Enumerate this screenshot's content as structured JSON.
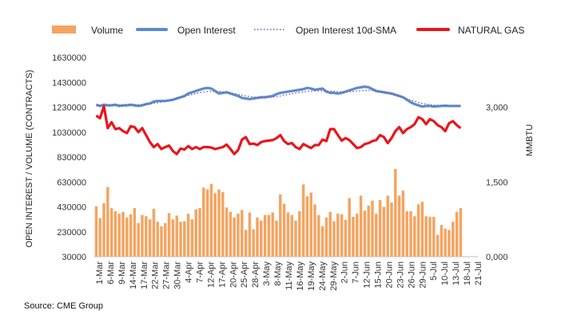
{
  "chart_data": {
    "type": "bar+line",
    "source": "Source: CME Group",
    "legend": {
      "placement": "top",
      "entries": [
        {
          "label": "Volume",
          "color": "#F4A460",
          "kind": "bar"
        },
        {
          "label": "Open Interest",
          "color": "#5B8CC8",
          "kind": "line"
        },
        {
          "label": "Open Interest 10d-SMA",
          "color": "#7E57C2",
          "kind": "dotted"
        },
        {
          "label": "NATURAL GAS",
          "color": "#E8161C",
          "kind": "line"
        }
      ]
    },
    "y_left": {
      "label": "OPEN INTEREST / VOLUME (CONTRACTS)",
      "range": [
        30000,
        1630000
      ],
      "ticks": [
        "30000",
        "230000",
        "430000",
        "630000",
        "830000",
        "1030000",
        "1230000",
        "1430000",
        "1630000"
      ]
    },
    "y_right": {
      "label": "MMBTU",
      "range": [
        0,
        4000
      ],
      "ticks": [
        "0,000",
        "1,500",
        "3,000"
      ]
    },
    "x_labels": [
      "1-Mar",
      "6-Mar",
      "9-Mar",
      "14-Mar",
      "17-Mar",
      "22-Mar",
      "27-Mar",
      "30-Mar",
      "4-Apr",
      "7-Apr",
      "12-Apr",
      "17-Apr",
      "20-Apr",
      "25-Apr",
      "28-Apr",
      "3-May",
      "8-May",
      "11-May",
      "16-May",
      "19-May",
      "24-May",
      "29-May",
      "2-Jun",
      "7-Jun",
      "12-Jun",
      "15-Jun",
      "20-Jun",
      "23-Jun",
      "26-Jun",
      "29-Jun",
      "5-Jul",
      "10-Jul",
      "13-Jul",
      "18-Jul",
      "21-Jul"
    ],
    "volume": [
      435000,
      340000,
      460000,
      590000,
      420000,
      395000,
      375000,
      390000,
      345000,
      370000,
      420000,
      300000,
      365000,
      355000,
      330000,
      415000,
      310000,
      275000,
      300000,
      380000,
      330000,
      360000,
      310000,
      315000,
      375000,
      330000,
      410000,
      420000,
      585000,
      570000,
      615000,
      540000,
      570000,
      550000,
      425000,
      390000,
      345000,
      375000,
      405000,
      245000,
      385000,
      250000,
      345000,
      320000,
      365000,
      365000,
      385000,
      320000,
      530000,
      455000,
      385000,
      365000,
      320000,
      395000,
      610000,
      515000,
      545000,
      450000,
      365000,
      275000,
      345000,
      390000,
      315000,
      375000,
      370000,
      325000,
      500000,
      350000,
      375000,
      520000,
      400000,
      440000,
      480000,
      375000,
      485000,
      430000,
      520000,
      465000,
      735000,
      520000,
      560000,
      395000,
      395000,
      355000,
      450000,
      470000,
      355000,
      350000,
      350000,
      205000,
      285000,
      255000,
      245000,
      310000,
      390000,
      420000
    ],
    "open_interest": [
      1250000,
      1240000,
      1250000,
      1245000,
      1245000,
      1250000,
      1240000,
      1245000,
      1245000,
      1250000,
      1245000,
      1240000,
      1245000,
      1255000,
      1260000,
      1275000,
      1280000,
      1280000,
      1280000,
      1285000,
      1290000,
      1300000,
      1310000,
      1320000,
      1340000,
      1350000,
      1360000,
      1370000,
      1380000,
      1385000,
      1380000,
      1360000,
      1340000,
      1345000,
      1350000,
      1340000,
      1330000,
      1320000,
      1305000,
      1300000,
      1295000,
      1300000,
      1305000,
      1310000,
      1310000,
      1315000,
      1320000,
      1335000,
      1345000,
      1350000,
      1355000,
      1360000,
      1365000,
      1370000,
      1375000,
      1385000,
      1380000,
      1370000,
      1375000,
      1380000,
      1355000,
      1345000,
      1345000,
      1340000,
      1345000,
      1355000,
      1365000,
      1375000,
      1385000,
      1390000,
      1395000,
      1390000,
      1375000,
      1360000,
      1355000,
      1350000,
      1345000,
      1340000,
      1330000,
      1320000,
      1310000,
      1290000,
      1270000,
      1255000,
      1245000,
      1235000,
      1240000,
      1240000,
      1235000,
      1238000,
      1240000,
      1242000,
      1240000,
      1240000,
      1240000,
      1240000
    ],
    "open_interest_sma": [
      1245000,
      1244000,
      1245000,
      1246000,
      1246000,
      1247000,
      1246000,
      1246000,
      1247000,
      1248000,
      1249000,
      1250000,
      1252000,
      1254000,
      1257000,
      1261000,
      1266000,
      1272000,
      1278000,
      1285000,
      1293000,
      1301000,
      1309000,
      1317000,
      1325000,
      1333000,
      1340000,
      1347000,
      1352000,
      1356000,
      1358000,
      1358000,
      1357000,
      1354000,
      1350000,
      1345000,
      1339000,
      1333000,
      1327000,
      1321000,
      1316000,
      1312000,
      1309000,
      1308000,
      1308000,
      1309000,
      1311000,
      1315000,
      1320000,
      1326000,
      1332000,
      1338000,
      1344000,
      1349000,
      1353000,
      1357000,
      1359000,
      1361000,
      1362000,
      1362000,
      1361000,
      1359000,
      1357000,
      1355000,
      1354000,
      1354000,
      1355000,
      1357000,
      1360000,
      1362000,
      1364000,
      1365000,
      1364000,
      1361000,
      1356000,
      1350000,
      1343000,
      1335000,
      1326000,
      1317000,
      1307000,
      1297000,
      1287000,
      1277000,
      1268000,
      1260000,
      1254000,
      1250000,
      1247000,
      1245000,
      1244000,
      1243000,
      1242000,
      1241000,
      1240000,
      1240000
    ],
    "natural_gas": [
      2830,
      2780,
      3020,
      2580,
      2700,
      2560,
      2580,
      2520,
      2480,
      2620,
      2600,
      2500,
      2580,
      2440,
      2300,
      2200,
      2260,
      2160,
      2200,
      2230,
      2120,
      2060,
      2170,
      2150,
      2220,
      2160,
      2200,
      2160,
      2200,
      2200,
      2190,
      2160,
      2180,
      2200,
      2250,
      2160,
      2060,
      2140,
      2350,
      2400,
      2260,
      2270,
      2240,
      2300,
      2320,
      2330,
      2340,
      2380,
      2440,
      2320,
      2260,
      2280,
      2200,
      2160,
      2260,
      2220,
      2180,
      2240,
      2240,
      2350,
      2320,
      2560,
      2560,
      2440,
      2330,
      2380,
      2340,
      2260,
      2180,
      2200,
      2260,
      2280,
      2320,
      2340,
      2440,
      2400,
      2280,
      2380,
      2520,
      2600,
      2480,
      2560,
      2600,
      2660,
      2800,
      2760,
      2660,
      2760,
      2720,
      2640,
      2600,
      2520,
      2680,
      2720,
      2640,
      2580
    ]
  }
}
